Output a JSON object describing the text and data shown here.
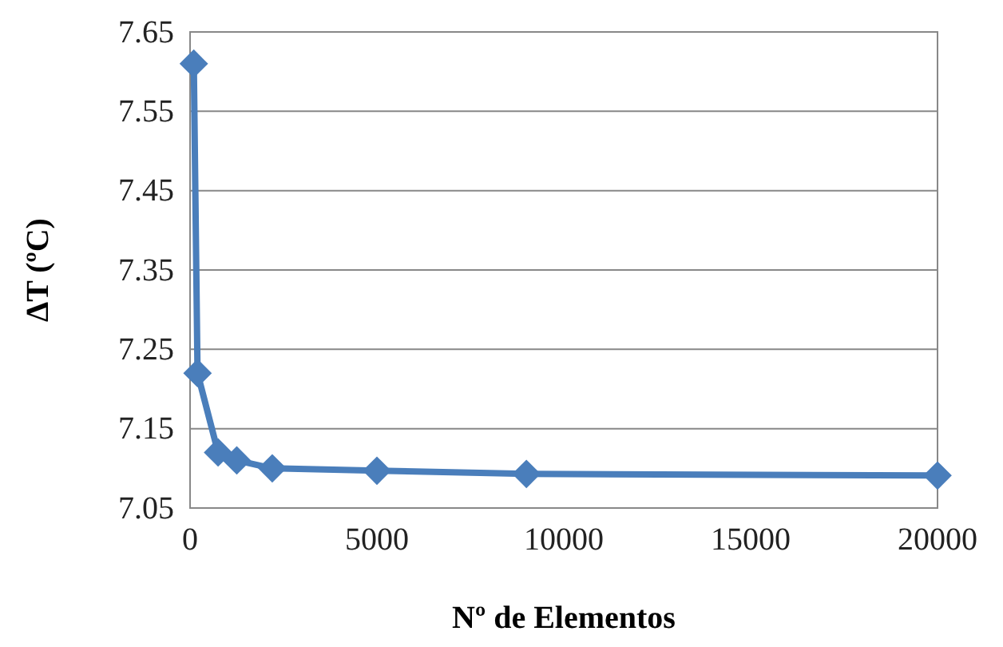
{
  "chart_data": {
    "type": "line",
    "xlabel": "Nº de Elementos",
    "ylabel": "ΔT (ºC)",
    "x": [
      100,
      200,
      750,
      1250,
      2200,
      5000,
      9000,
      20000
    ],
    "series": [
      {
        "color": "#4a7ebb",
        "values": [
          7.61,
          7.22,
          7.12,
          7.11,
          7.1,
          7.097,
          7.093,
          7.091
        ]
      }
    ],
    "xlim": [
      0,
      20000
    ],
    "xticks": [
      0,
      5000,
      10000,
      15000,
      20000
    ],
    "ylim": [
      7.05,
      7.65
    ],
    "yticks": [
      {
        "value": 7.05,
        "label": "7.05"
      },
      {
        "value": 7.15,
        "label": "7.15"
      },
      {
        "value": 7.25,
        "label": "7.25"
      },
      {
        "value": 7.35,
        "label": "7.35"
      },
      {
        "value": 7.45,
        "label": "7.45"
      },
      {
        "value": 7.55,
        "label": "7.55"
      },
      {
        "value": 7.65,
        "label": "7.65"
      }
    ],
    "grid": "y",
    "marker": "diamond",
    "line_style": "solid"
  }
}
